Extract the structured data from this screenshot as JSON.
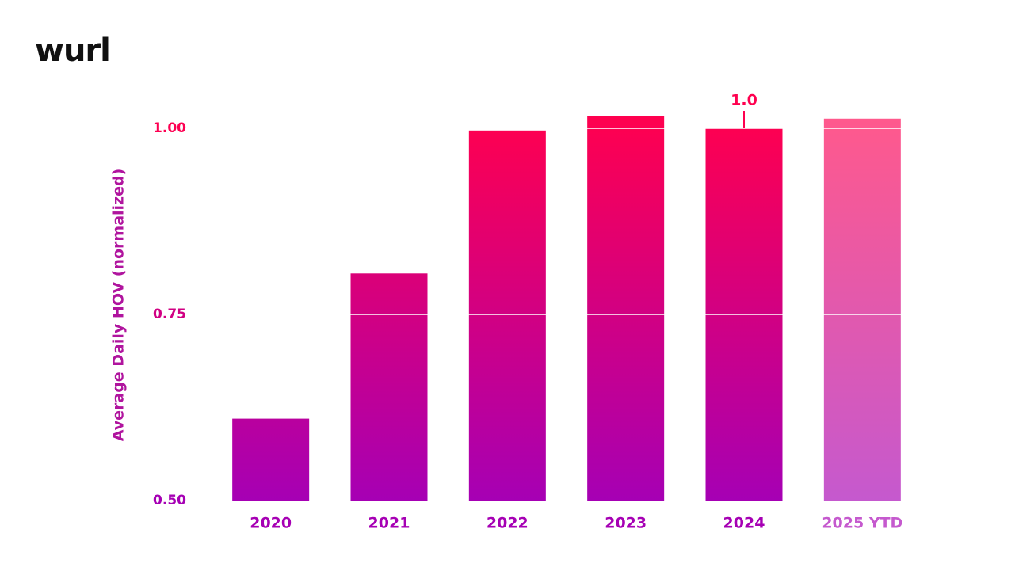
{
  "logo": "wurl",
  "chart_data": {
    "type": "bar",
    "y_label": "Average Daily HOV (normalized)",
    "categories": [
      "2020",
      "2021",
      "2022",
      "2023",
      "2024",
      "2025 YTD"
    ],
    "values": [
      0.61,
      0.805,
      0.997,
      1.017,
      1.0,
      1.013
    ],
    "value_labels": [
      null,
      null,
      null,
      null,
      "1.0",
      null
    ],
    "bar_opacity": [
      1,
      1,
      1,
      1,
      1,
      0.65
    ],
    "gradient": [
      "#a600b4",
      "#ff004f"
    ],
    "ylim": [
      0.5,
      1.05
    ],
    "yticks": [
      {
        "value": 0.5,
        "label": "0.50"
      },
      {
        "value": 0.75,
        "label": "0.75"
      },
      {
        "value": 1.0,
        "label": "1.00"
      }
    ],
    "grid": true
  }
}
